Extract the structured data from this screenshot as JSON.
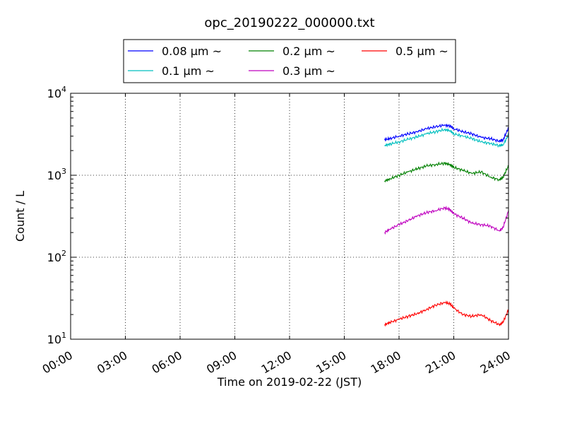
{
  "chart_data": {
    "type": "line",
    "title": "opc_20190222_000000.txt",
    "xlabel": "Time on 2019-02-22 (JST)",
    "ylabel": "Count / L",
    "xlim": [
      0,
      24
    ],
    "ylim": [
      10,
      10000
    ],
    "yscale": "log",
    "grid": true,
    "legend_position": "top",
    "x_ticks": [
      {
        "value": 0,
        "label": "00:00"
      },
      {
        "value": 3,
        "label": "03:00"
      },
      {
        "value": 6,
        "label": "06:00"
      },
      {
        "value": 9,
        "label": "09:00"
      },
      {
        "value": 12,
        "label": "12:00"
      },
      {
        "value": 15,
        "label": "15:00"
      },
      {
        "value": 18,
        "label": "18:00"
      },
      {
        "value": 21,
        "label": "21:00"
      },
      {
        "value": 24,
        "label": "24:00"
      }
    ],
    "y_ticks": [
      {
        "value": 10,
        "base": "10",
        "exp": "1"
      },
      {
        "value": 100,
        "base": "10",
        "exp": "2"
      },
      {
        "value": 1000,
        "base": "10",
        "exp": "3"
      },
      {
        "value": 10000,
        "base": "10",
        "exp": "4"
      }
    ],
    "x": [
      17.2,
      17.5,
      18.0,
      18.5,
      19.0,
      19.5,
      20.0,
      20.5,
      20.8,
      21.0,
      21.5,
      22.0,
      22.5,
      23.0,
      23.5,
      23.7,
      24.0
    ],
    "series": [
      {
        "name": "0.08 μm ~",
        "color": "#0000ff",
        "values": [
          2700,
          2800,
          3000,
          3200,
          3400,
          3700,
          3900,
          4100,
          4000,
          3700,
          3400,
          3200,
          2900,
          2800,
          2600,
          2700,
          3800
        ]
      },
      {
        "name": "0.1 μm ~",
        "color": "#00bfbf",
        "values": [
          2300,
          2400,
          2550,
          2750,
          2950,
          3200,
          3400,
          3600,
          3500,
          3200,
          3000,
          2800,
          2550,
          2450,
          2300,
          2350,
          3100
        ]
      },
      {
        "name": "0.2 μm ~",
        "color": "#008000",
        "values": [
          850,
          900,
          1000,
          1100,
          1200,
          1300,
          1350,
          1400,
          1350,
          1250,
          1150,
          1050,
          1100,
          950,
          880,
          950,
          1300
        ]
      },
      {
        "name": "0.3 μm ~",
        "color": "#bf00bf",
        "values": [
          200,
          220,
          250,
          280,
          320,
          350,
          370,
          400,
          380,
          340,
          300,
          260,
          250,
          240,
          210,
          230,
          370
        ]
      },
      {
        "name": "0.5 μm ~",
        "color": "#ff0000",
        "values": [
          15,
          16,
          17.5,
          19,
          20.5,
          23,
          26,
          28,
          27,
          24,
          20,
          19,
          20,
          17,
          15,
          16,
          23
        ]
      }
    ]
  }
}
